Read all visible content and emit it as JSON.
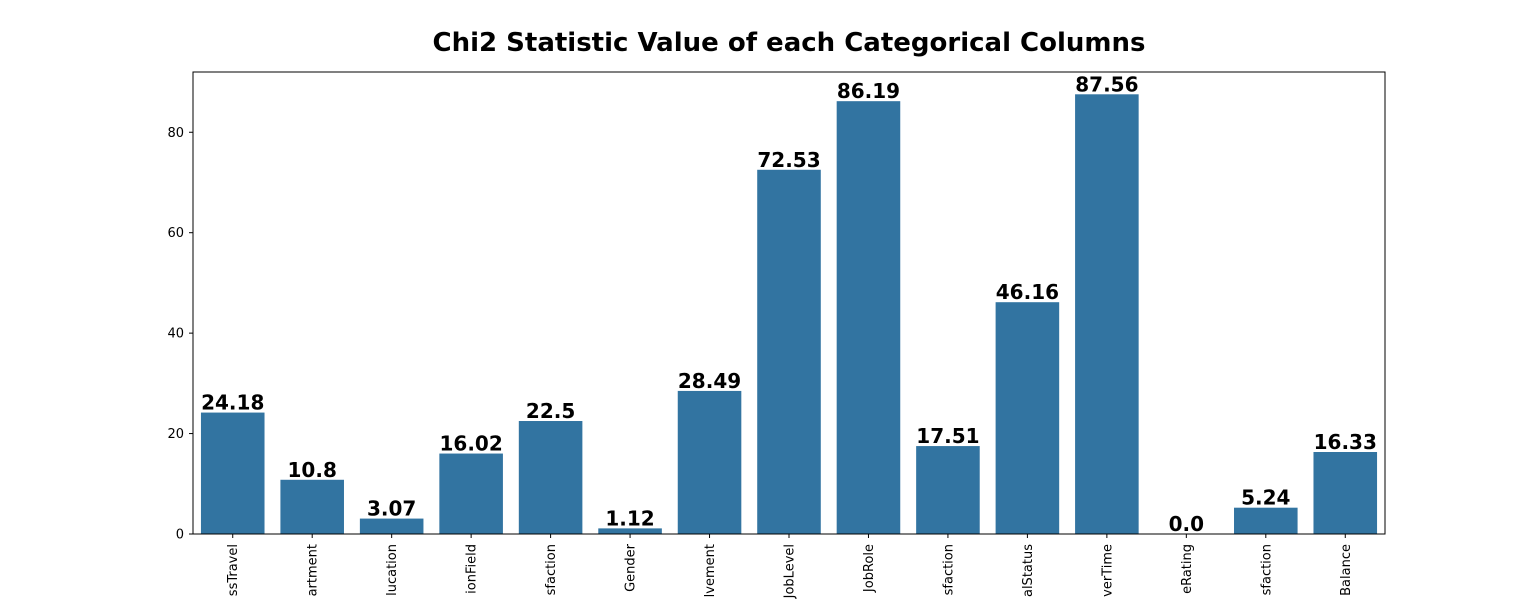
{
  "chart_data": {
    "type": "bar",
    "title": "Chi2 Statistic Value of each Categorical Columns",
    "xlabel": "",
    "ylabel": "",
    "categories": [
      "ssTravel",
      "artment",
      "lucation",
      "ionField",
      "sfaction",
      "Gender",
      "lvement",
      "JobLevel",
      "JobRole",
      "sfaction",
      "alStatus",
      "verTime",
      "eRating",
      "sfaction",
      "Balance"
    ],
    "values": [
      24.18,
      10.8,
      3.07,
      16.02,
      22.5,
      1.12,
      28.49,
      72.53,
      86.19,
      17.51,
      46.16,
      87.56,
      0.0,
      5.24,
      16.33
    ],
    "value_labels": [
      "24.18",
      "10.8",
      "3.07",
      "16.02",
      "22.5",
      "1.12",
      "28.49",
      "72.53",
      "86.19",
      "17.51",
      "46.16",
      "87.56",
      "0.0",
      "5.24",
      "16.33"
    ],
    "ylim": [
      0,
      92
    ],
    "yticks": [
      0,
      20,
      40,
      60,
      80
    ],
    "ytick_labels": [
      "0",
      "20",
      "40",
      "60",
      "80"
    ],
    "grid": false,
    "legend": "none",
    "bar_color": "#3274a1"
  }
}
